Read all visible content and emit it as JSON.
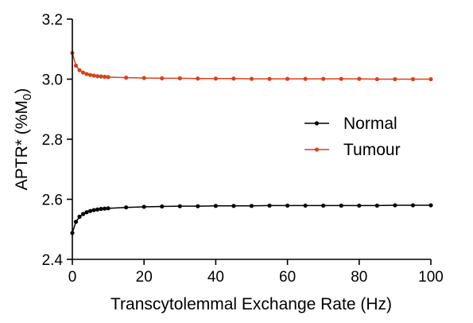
{
  "chart_data": {
    "type": "line",
    "xlabel": "Transcytolemmal Exchange Rate (Hz)",
    "ylabel_prefix": "APTR* (%M",
    "ylabel_subscript": "0",
    "ylabel_suffix": ")",
    "xlim": [
      0,
      100
    ],
    "ylim": [
      2.4,
      3.2
    ],
    "xticks": [
      "0",
      "20",
      "40",
      "60",
      "80",
      "100"
    ],
    "yticks": [
      "2.4",
      "2.6",
      "2.8",
      "3.0",
      "3.2"
    ],
    "grid": false,
    "legend_position": "right",
    "x": [
      0,
      1,
      2,
      3,
      4,
      5,
      6,
      7,
      8,
      9,
      10,
      15,
      20,
      25,
      30,
      35,
      40,
      45,
      50,
      55,
      60,
      65,
      70,
      75,
      80,
      85,
      90,
      95,
      100
    ],
    "series": [
      {
        "name": "Normal",
        "color": "#000000",
        "values": [
          2.488,
          2.525,
          2.542,
          2.551,
          2.557,
          2.561,
          2.564,
          2.566,
          2.568,
          2.569,
          2.57,
          2.573,
          2.575,
          2.576,
          2.577,
          2.577,
          2.578,
          2.578,
          2.578,
          2.579,
          2.579,
          2.579,
          2.579,
          2.579,
          2.579,
          2.579,
          2.58,
          2.58,
          2.58
        ]
      },
      {
        "name": "Tumour",
        "color": "#d9411e",
        "values": [
          3.087,
          3.045,
          3.03,
          3.022,
          3.017,
          3.014,
          3.012,
          3.01,
          3.009,
          3.008,
          3.007,
          3.005,
          3.004,
          3.003,
          3.003,
          3.002,
          3.002,
          3.002,
          3.001,
          3.001,
          3.001,
          3.001,
          3.001,
          3.001,
          3.001,
          3.0,
          3.0,
          3.0,
          3.0
        ]
      }
    ]
  }
}
